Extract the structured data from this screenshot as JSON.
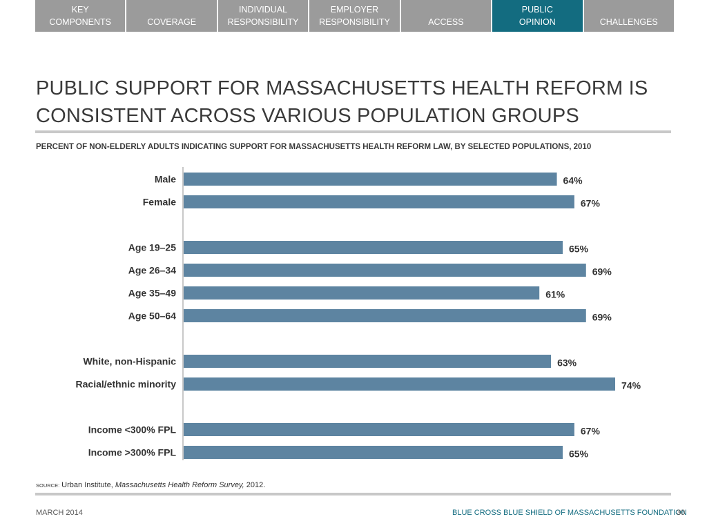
{
  "nav": {
    "tabs": [
      {
        "label": "KEY\nCOMPONENTS",
        "active": false
      },
      {
        "label": "COVERAGE",
        "active": false
      },
      {
        "label": "INDIVIDUAL\nRESPONSIBILITY",
        "active": false
      },
      {
        "label": "EMPLOYER\nRESPONSIBILITY",
        "active": false
      },
      {
        "label": "ACCESS",
        "active": false
      },
      {
        "label": "PUBLIC\nOPINION",
        "active": true
      },
      {
        "label": "CHALLENGES",
        "active": false
      }
    ],
    "active_color": "#136c80",
    "inactive_color": "#9b9b9b"
  },
  "title": "PUBLIC SUPPORT FOR MASSACHUSETTS HEALTH REFORM IS CONSISTENT ACROSS VARIOUS POPULATION GROUPS",
  "chart_data": {
    "type": "bar",
    "orientation": "horizontal",
    "title": "PERCENT OF NON-ELDERLY ADULTS INDICATING SUPPORT FOR MASSACHUSETTS HEALTH REFORM LAW, BY SELECTED POPULATIONS, 2010",
    "groups": [
      {
        "categories": [
          "Male",
          "Female"
        ],
        "values": [
          64,
          67
        ]
      },
      {
        "categories": [
          "Age 19–25",
          "Age 26–34",
          "Age 35–49",
          "Age 50–64"
        ],
        "values": [
          65,
          69,
          61,
          69
        ]
      },
      {
        "categories": [
          "White, non-Hispanic",
          "Racial/ethnic minority"
        ],
        "values": [
          63,
          74
        ]
      },
      {
        "categories": [
          "Income <300% FPL",
          "Income >300% FPL"
        ],
        "values": [
          67,
          65
        ]
      }
    ],
    "value_suffix": "%",
    "xlim": [
      0,
      74
    ],
    "bar_color": "#5d84a1",
    "grid": false,
    "legend": "none"
  },
  "source": {
    "label": "SOURCE:",
    "text": "Urban Institute, ",
    "italic": "Massachusetts Health Reform Survey,",
    "year": " 2012."
  },
  "footer": {
    "date": "MARCH 2014",
    "org": "BLUE CROSS BLUE SHIELD OF MASSACHUSETTS FOUNDATION",
    "page": "30",
    "org_color": "#136c80"
  }
}
